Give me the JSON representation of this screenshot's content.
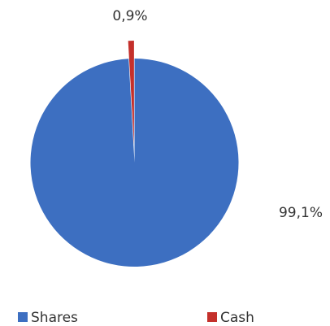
{
  "chart_data": {
    "type": "pie",
    "categories": [
      "Shares",
      "Cash"
    ],
    "values": [
      99.1,
      0.9
    ],
    "value_labels": [
      "99,1%",
      "0,9%"
    ],
    "colors": [
      "#3d6fc1",
      "#c4302b"
    ],
    "legend": "bottom"
  }
}
